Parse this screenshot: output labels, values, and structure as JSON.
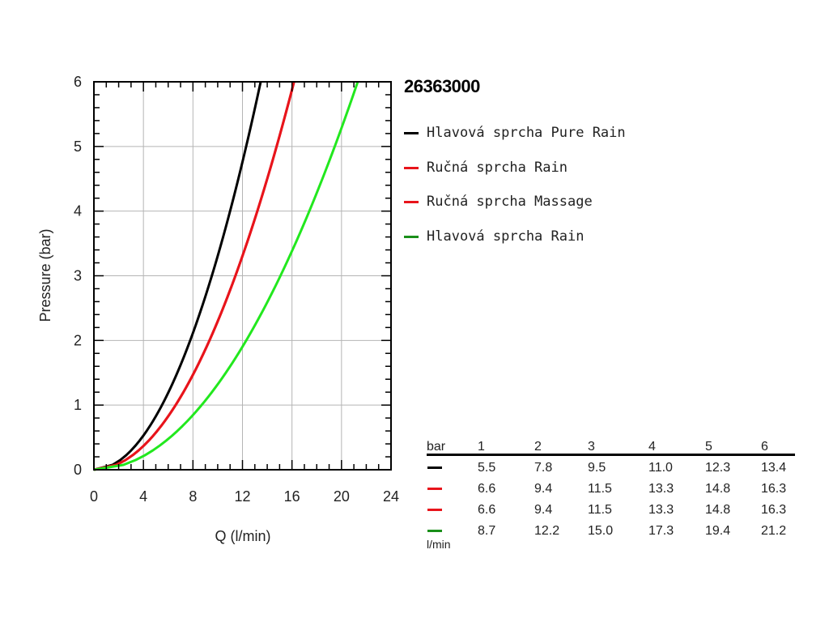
{
  "chart_data": {
    "type": "line",
    "title": "26363000",
    "xlabel": "Q (l/min)",
    "ylabel": "Pressure (bar)",
    "xlim": [
      0,
      24
    ],
    "ylim": [
      0,
      6
    ],
    "xticks": [
      "0",
      "4",
      "8",
      "12",
      "16",
      "20",
      "24"
    ],
    "yticks": [
      "0",
      "1",
      "2",
      "3",
      "4",
      "5",
      "6"
    ],
    "grid": true,
    "legend_position": "right",
    "series": [
      {
        "name": "Hlavová sprcha Pure Rain",
        "color": "#000000",
        "pressure": [
          0,
          1,
          2,
          3,
          4,
          5,
          6
        ],
        "flow": [
          0,
          5.5,
          7.8,
          9.5,
          11.0,
          12.3,
          13.4
        ]
      },
      {
        "name": "Ručná sprcha Rain",
        "color": "#e8141b",
        "pressure": [
          0,
          1,
          2,
          3,
          4,
          5,
          6
        ],
        "flow": [
          0,
          6.6,
          9.4,
          11.5,
          13.3,
          14.8,
          16.3
        ]
      },
      {
        "name": "Ručná sprcha Massage",
        "color": "#e8141b",
        "pressure": [
          0,
          1,
          2,
          3,
          4,
          5,
          6
        ],
        "flow": [
          0,
          6.6,
          9.4,
          11.5,
          13.3,
          14.8,
          16.3
        ]
      },
      {
        "name": "Hlavová sprcha Rain",
        "color": "#22e81e",
        "pressure": [
          0,
          1,
          2,
          3,
          4,
          5,
          6
        ],
        "flow": [
          0,
          8.7,
          12.2,
          15.0,
          17.3,
          19.4,
          21.2
        ]
      }
    ]
  },
  "legend_swatch_colors": [
    "#000000",
    "#e8141b",
    "#e8141b",
    "#1a8f1a"
  ],
  "table": {
    "row_header_label": "bar",
    "unit_label": "l/min",
    "columns": [
      "1",
      "2",
      "3",
      "4",
      "5",
      "6"
    ],
    "rows": [
      {
        "color": "#000000",
        "values": [
          "5.5",
          "7.8",
          "9.5",
          "11.0",
          "12.3",
          "13.4"
        ]
      },
      {
        "color": "#e8141b",
        "values": [
          "6.6",
          "9.4",
          "11.5",
          "13.3",
          "14.8",
          "16.3"
        ]
      },
      {
        "color": "#e8141b",
        "values": [
          "6.6",
          "9.4",
          "11.5",
          "13.3",
          "14.8",
          "16.3"
        ]
      },
      {
        "color": "#1a8f1a",
        "values": [
          "8.7",
          "12.2",
          "15.0",
          "17.3",
          "19.4",
          "21.2"
        ]
      }
    ]
  }
}
